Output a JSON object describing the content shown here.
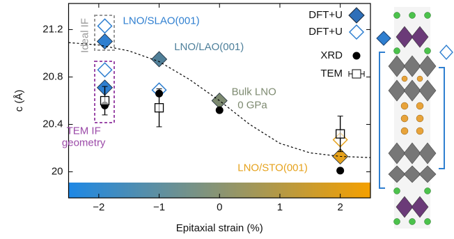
{
  "chart_data": {
    "type": "scatter",
    "xlabel": "Epitaxial strain (%)",
    "ylabel": "c (Å)",
    "xlim": [
      -2.5,
      2.5
    ],
    "ylim": [
      19.78,
      21.42
    ],
    "xticks": [
      {
        "value": -2,
        "label": "−2"
      },
      {
        "value": -1,
        "label": "−1"
      },
      0,
      1,
      2
    ],
    "yticks": [
      20,
      20.4,
      20.8,
      21.2
    ],
    "gradient": [
      "#1e88e5",
      "#f5a000"
    ],
    "series": [
      {
        "name": "DFT+U",
        "marker": "diamond-filled",
        "color": "#2f6fb8",
        "x": [
          -1.9,
          -1.9,
          -1,
          0,
          2
        ],
        "values": [
          21.1,
          20.71,
          20.95,
          20.6,
          20.13
        ],
        "colors": [
          "#2f7fd0",
          "#2f7fd0",
          "#507f98",
          "#7d8a70",
          "#e6a21c"
        ]
      },
      {
        "name": "DFT+U",
        "marker": "diamond-open",
        "color": "#2f7fd0",
        "x": [
          -1.9,
          -1.9,
          -1,
          2
        ],
        "values": [
          21.23,
          20.86,
          20.69,
          20.27
        ],
        "colors": [
          "#2f7fd0",
          "#2f7fd0",
          "#2f7fd0",
          "#e6a21c"
        ]
      },
      {
        "name": "XRD",
        "marker": "dot",
        "color": "#000000",
        "x": [
          -1.9,
          -1,
          0,
          2
        ],
        "values": [
          20.56,
          20.66,
          20.52,
          20.01
        ]
      },
      {
        "name": "TEM",
        "marker": "square-err",
        "color": "#000000",
        "x": [
          -1.9,
          -1,
          2
        ],
        "values": [
          20.6,
          20.54,
          20.32
        ],
        "errors": [
          0.12,
          0.16,
          0.15
        ]
      },
      {
        "marker": "dashed-line",
        "color": "#000000",
        "x": [
          -2.5,
          -2,
          -1.5,
          -1,
          -0.5,
          0,
          0.5,
          1,
          1.5,
          2,
          2.5
        ],
        "values": [
          21.09,
          21.07,
          21.02,
          20.93,
          20.78,
          20.6,
          20.4,
          20.24,
          20.16,
          20.13,
          20.12
        ]
      }
    ],
    "annotations": [
      {
        "text": "LNO/SLAO(001)",
        "x": -1.6,
        "y": 21.27,
        "color": "#2f7fd0"
      },
      {
        "text": "LNO/LAO(001)",
        "x": -0.75,
        "y": 21.05,
        "color": "#4d7f9a"
      },
      {
        "text": "Bulk LNO",
        "x": 0.2,
        "y": 20.67,
        "color": "#7d8a70"
      },
      {
        "text": "0 GPa",
        "x": 0.3,
        "y": 20.56,
        "color": "#7d8a70"
      },
      {
        "text": "LNO/STO(001)",
        "x": 0.3,
        "y": 20.03,
        "color": "#e6a21c"
      },
      {
        "text": "TEM IF",
        "x": -2.25,
        "y": 20.34,
        "color": "#9b4aa8"
      },
      {
        "text": "geometry",
        "x": -2.25,
        "y": 20.24,
        "color": "#9b4aa8"
      },
      {
        "text": "Ideal IF",
        "x": -2.22,
        "y": 21.15,
        "color": "#999999",
        "rotate": true
      }
    ]
  }
}
